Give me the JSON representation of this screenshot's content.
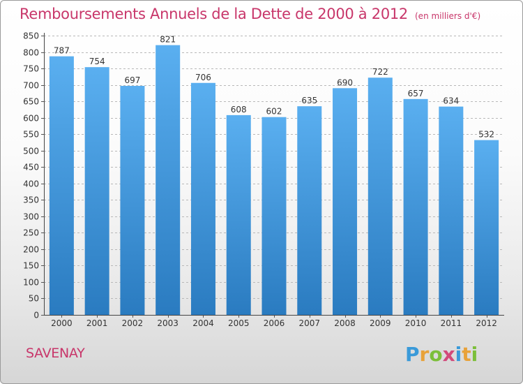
{
  "header": {
    "title": "Remboursements Annuels de la Dette de 2000 à 2012",
    "unit": "(en milliers d'€)"
  },
  "footer": {
    "town": "SAVENAY",
    "logo": "Proxiti"
  },
  "colors": {
    "title": "#c8366a",
    "bar_top": "#5aaff0",
    "bar_bottom": "#2a7bc0",
    "grid": "#b8b8b8",
    "logo_letters": [
      "#3a9ad9",
      "#e8a23a",
      "#7cbf3a",
      "#d24a7a",
      "#3a9ad9",
      "#e8a23a",
      "#7cbf3a"
    ]
  },
  "chart_data": {
    "type": "bar",
    "title": "Remboursements Annuels de la Dette de 2000 à 2012",
    "subtitle": "(en milliers d'€)",
    "categories": [
      "2000",
      "2001",
      "2002",
      "2003",
      "2004",
      "2005",
      "2006",
      "2007",
      "2008",
      "2009",
      "2010",
      "2011",
      "2012"
    ],
    "values": [
      787,
      754,
      697,
      821,
      706,
      608,
      602,
      635,
      690,
      722,
      657,
      634,
      532
    ],
    "ylim": [
      0,
      850
    ],
    "yticks": [
      0,
      50,
      100,
      150,
      200,
      250,
      300,
      350,
      400,
      450,
      500,
      550,
      600,
      650,
      700,
      750,
      800,
      850
    ],
    "grid": true,
    "data_labels": true
  }
}
